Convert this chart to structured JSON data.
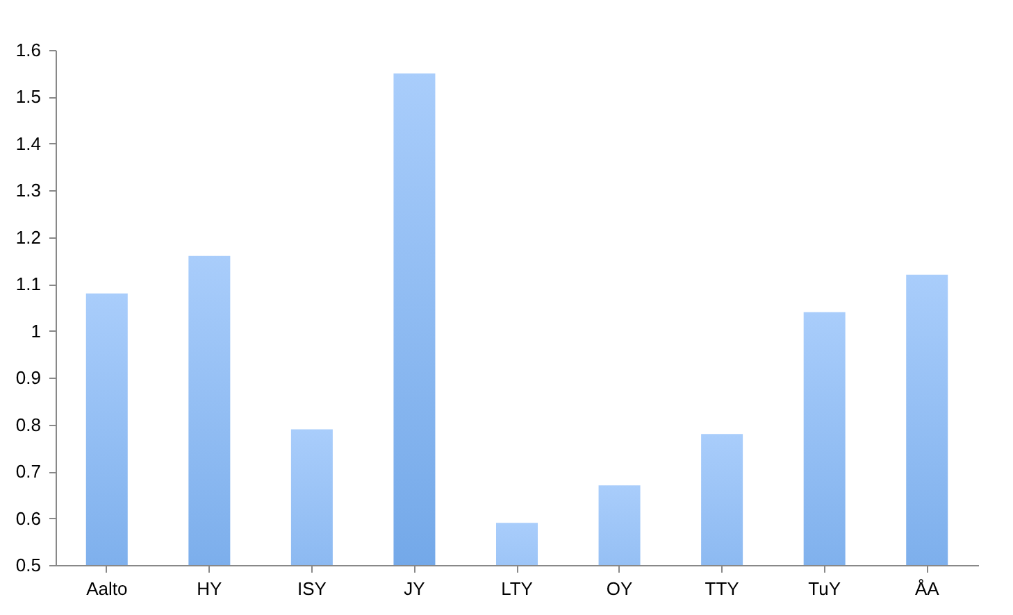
{
  "chart_data": {
    "type": "bar",
    "categories": [
      "Aalto",
      "HY",
      "ISY",
      "JY",
      "LTY",
      "OY",
      "TTY",
      "TuY",
      "ÅA"
    ],
    "values": [
      1.08,
      1.16,
      0.79,
      1.55,
      0.59,
      0.67,
      0.78,
      1.04,
      1.12
    ],
    "color": "#5a97e0",
    "ylim": [
      0.5,
      1.6
    ],
    "yticks": [
      0.5,
      0.6,
      0.7,
      0.8,
      0.9,
      1,
      1.1,
      1.2,
      1.3,
      1.4,
      1.5,
      1.6
    ],
    "grid": false
  }
}
